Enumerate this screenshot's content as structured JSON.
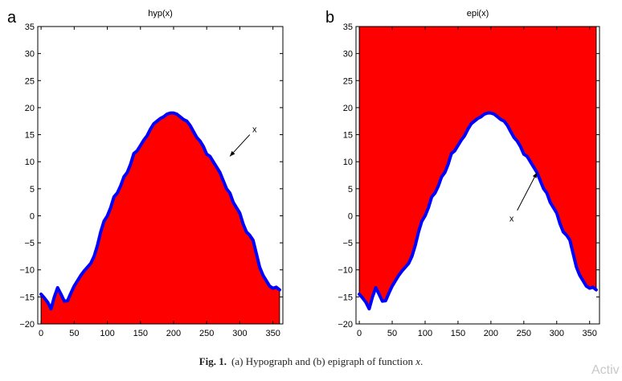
{
  "chart_data": [
    {
      "type": "area",
      "panel_label": "a",
      "title": "hyp(x)",
      "fill": "below",
      "xlim": [
        -5,
        365
      ],
      "ylim": [
        -20,
        35
      ],
      "xticks": [
        0,
        50,
        100,
        150,
        200,
        250,
        300,
        350
      ],
      "yticks": [
        -20,
        -15,
        -10,
        -5,
        0,
        5,
        10,
        15,
        20,
        25,
        30,
        35
      ],
      "annotation": {
        "text": "x",
        "arrow_from": [
          315,
          15
        ],
        "arrow_to": [
          285,
          11
        ]
      },
      "fill_color": "#ff0000",
      "line_color": "#0000ff",
      "series": [
        {
          "x": [
            0,
            5,
            10,
            15,
            20,
            25,
            30,
            35,
            40,
            45,
            50,
            55,
            60,
            65,
            70,
            75,
            80,
            85,
            90,
            95,
            100,
            105,
            110,
            115,
            120,
            125,
            130,
            135,
            140,
            145,
            150,
            155,
            160,
            165,
            170,
            175,
            180,
            185,
            190,
            195,
            200,
            205,
            210,
            215,
            220,
            225,
            230,
            235,
            240,
            245,
            250,
            255,
            260,
            265,
            270,
            275,
            280,
            285,
            290,
            295,
            300,
            305,
            310,
            315,
            320,
            325,
            330,
            335,
            340,
            345,
            350,
            355,
            360
          ],
          "y": [
            -14.5,
            -15.2,
            -16,
            -17.2,
            -15,
            -13.3,
            -14.5,
            -15.8,
            -15.7,
            -14.3,
            -13,
            -12,
            -11,
            -10.2,
            -9.5,
            -8.8,
            -7.5,
            -5.5,
            -3,
            -1,
            0,
            1.5,
            3.5,
            4.2,
            5.5,
            7.2,
            8,
            9.5,
            11.5,
            12,
            13,
            14,
            14.8,
            16,
            17,
            17.5,
            18,
            18.3,
            18.8,
            19,
            19,
            18.8,
            18.3,
            17.8,
            17.5,
            16.7,
            15.6,
            14.5,
            13.8,
            12.8,
            11.4,
            11,
            10,
            9,
            8,
            6.5,
            5,
            4.2,
            2.5,
            1.5,
            0.5,
            -1.5,
            -3,
            -3.6,
            -4.5,
            -7,
            -9.5,
            -11,
            -12,
            -13,
            -13.4,
            -13.2,
            -13.7
          ]
        }
      ]
    },
    {
      "type": "area",
      "panel_label": "b",
      "title": "epi(x)",
      "fill": "above",
      "xlim": [
        -5,
        365
      ],
      "ylim": [
        -20,
        35
      ],
      "xticks": [
        0,
        50,
        100,
        150,
        200,
        250,
        300,
        350
      ],
      "yticks": [
        -20,
        -15,
        -10,
        -5,
        0,
        5,
        10,
        15,
        20,
        25,
        30,
        35
      ],
      "annotation": {
        "text": "x",
        "arrow_from": [
          240,
          1
        ],
        "arrow_to": [
          270,
          8
        ]
      },
      "fill_color": "#ff0000",
      "line_color": "#0000ff",
      "series": [
        {
          "x": [
            0,
            5,
            10,
            15,
            20,
            25,
            30,
            35,
            40,
            45,
            50,
            55,
            60,
            65,
            70,
            75,
            80,
            85,
            90,
            95,
            100,
            105,
            110,
            115,
            120,
            125,
            130,
            135,
            140,
            145,
            150,
            155,
            160,
            165,
            170,
            175,
            180,
            185,
            190,
            195,
            200,
            205,
            210,
            215,
            220,
            225,
            230,
            235,
            240,
            245,
            250,
            255,
            260,
            265,
            270,
            275,
            280,
            285,
            290,
            295,
            300,
            305,
            310,
            315,
            320,
            325,
            330,
            335,
            340,
            345,
            350,
            355,
            360
          ],
          "y": [
            -14.5,
            -15.2,
            -16,
            -17.2,
            -15,
            -13.3,
            -14.5,
            -15.8,
            -15.7,
            -14.3,
            -13,
            -12,
            -11,
            -10.2,
            -9.5,
            -8.8,
            -7.5,
            -5.5,
            -3,
            -1,
            0,
            1.5,
            3.5,
            4.2,
            5.5,
            7.2,
            8,
            9.5,
            11.5,
            12,
            13,
            14,
            14.8,
            16,
            17,
            17.5,
            18,
            18.3,
            18.8,
            19,
            19,
            18.8,
            18.3,
            17.8,
            17.5,
            16.7,
            15.6,
            14.5,
            13.8,
            12.8,
            11.4,
            11,
            10,
            9,
            8,
            6.5,
            5,
            4.2,
            2.5,
            1.5,
            0.5,
            -1.5,
            -3,
            -3.6,
            -4.5,
            -7,
            -9.5,
            -11,
            -12,
            -13,
            -13.4,
            -13.2,
            -13.7
          ]
        }
      ]
    }
  ],
  "caption": {
    "label": "Fig. 1.",
    "text_before": "(a) Hypograph and (b) epigraph of function",
    "fn": "x",
    "text_after": "."
  },
  "watermark": "Activ"
}
